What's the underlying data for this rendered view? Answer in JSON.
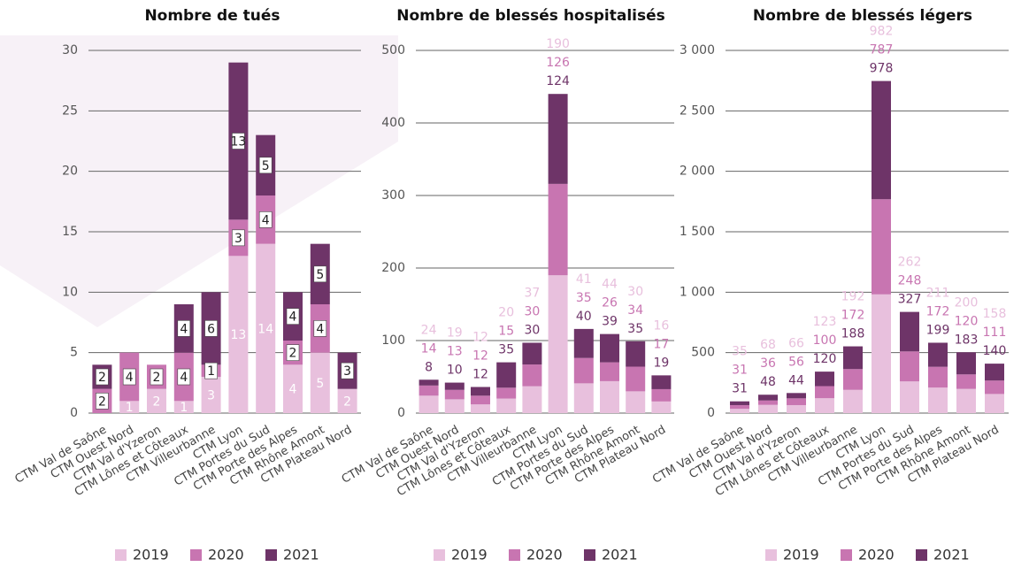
{
  "chart_data": [
    {
      "type": "bar",
      "stacked": true,
      "title": "Nombre de tués",
      "categories": [
        "CTM Val de Saône",
        "CTM Ouest Nord",
        "CTM Val d'Yzeron",
        "CTM Lônes et Côteaux",
        "CTM Villeurbanne",
        "CTM Lyon",
        "CTM Portes du Sud",
        "CTM Porte des Alpes",
        "CTM Rhône Amont",
        "CTM Plateau Nord"
      ],
      "series": [
        {
          "name": "2019",
          "color": "#e8c0dd",
          "values": [
            0,
            1,
            2,
            1,
            3,
            13,
            14,
            4,
            5,
            2
          ]
        },
        {
          "name": "2020",
          "color": "#c875b1",
          "values": [
            2,
            4,
            2,
            4,
            1,
            3,
            4,
            2,
            4,
            0
          ]
        },
        {
          "name": "2021",
          "color": "#6e3468",
          "values": [
            2,
            0,
            0,
            4,
            6,
            13,
            5,
            4,
            5,
            3
          ]
        }
      ],
      "ylim": [
        0,
        30
      ],
      "yticks": [
        0,
        5,
        10,
        15,
        20,
        25,
        30
      ],
      "grid": true,
      "legend": "bottom"
    },
    {
      "type": "bar",
      "stacked": true,
      "title": "Nombre de blessés hospitalisés",
      "categories": [
        "CTM Val de Saône",
        "CTM Ouest Nord",
        "CTM Val d'Yzeron",
        "CTM Lônes et Côteaux",
        "CTM Villeurbanne",
        "CTM Lyon",
        "CTM Portes du Sud",
        "CTM Porte des Alpes",
        "CTM Rhône Amont",
        "CTM Plateau Nord"
      ],
      "series": [
        {
          "name": "2019",
          "color": "#e8c0dd",
          "values": [
            24,
            19,
            12,
            20,
            37,
            190,
            41,
            44,
            30,
            16
          ]
        },
        {
          "name": "2020",
          "color": "#c875b1",
          "values": [
            14,
            13,
            12,
            15,
            30,
            126,
            35,
            26,
            34,
            17
          ]
        },
        {
          "name": "2021",
          "color": "#6e3468",
          "values": [
            8,
            10,
            12,
            35,
            30,
            124,
            40,
            39,
            35,
            19
          ]
        }
      ],
      "ylim": [
        0,
        500
      ],
      "yticks": [
        0,
        100,
        200,
        300,
        400,
        500
      ],
      "grid": true,
      "legend": "bottom"
    },
    {
      "type": "bar",
      "stacked": true,
      "title": "Nombre de blessés légers",
      "categories": [
        "CTM Val de Saône",
        "CTM Ouest Nord",
        "CTM Val d'Yzeron",
        "CTM Lônes et Côteaux",
        "CTM Villeurbanne",
        "CTM Lyon",
        "CTM Portes du Sud",
        "CTM Porte des Alpes",
        "CTM Rhône Amont",
        "CTM Plateau Nord"
      ],
      "series": [
        {
          "name": "2019",
          "color": "#e8c0dd",
          "values": [
            35,
            68,
            66,
            123,
            192,
            982,
            262,
            211,
            200,
            158
          ]
        },
        {
          "name": "2020",
          "color": "#c875b1",
          "values": [
            31,
            36,
            56,
            100,
            172,
            787,
            248,
            172,
            120,
            111
          ]
        },
        {
          "name": "2021",
          "color": "#6e3468",
          "values": [
            31,
            48,
            44,
            120,
            188,
            978,
            327,
            199,
            183,
            140
          ]
        }
      ],
      "ylim": [
        0,
        3000
      ],
      "yticks": [
        0,
        500,
        {
          "value": 1000,
          "label": "1 000"
        },
        {
          "value": 1500,
          "label": "1 500"
        },
        {
          "value": 2000,
          "label": "2 000"
        },
        {
          "value": 2500,
          "label": "2 500"
        },
        {
          "value": 3000,
          "label": "3 000"
        }
      ],
      "grid": true,
      "legend": "bottom"
    }
  ]
}
